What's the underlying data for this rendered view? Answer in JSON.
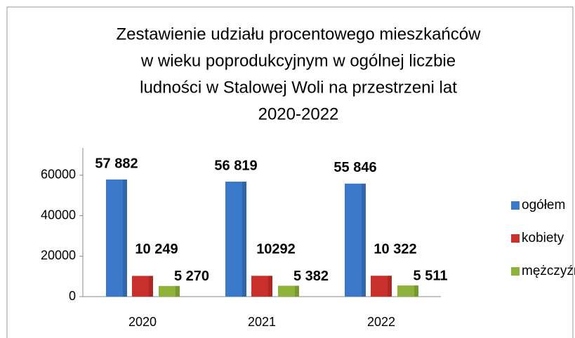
{
  "chart_data": {
    "type": "bar",
    "title": [
      "Zestawienie udziału procentowego mieszkańców",
      "w wieku poprodukcyjnym w ogólnej liczbie",
      "ludności w Stalowej Woli na przestrzeni lat",
      "2020-2022"
    ],
    "categories": [
      "2020",
      "2021",
      "2022"
    ],
    "series": [
      {
        "name": "ogółem",
        "color": "#3a78c9",
        "values": [
          57882,
          56819,
          55846
        ],
        "value_labels": [
          "57 882",
          "56 819",
          "55 846"
        ]
      },
      {
        "name": "kobiety",
        "color": "#c9302c",
        "values": [
          10249,
          10292,
          10322
        ],
        "value_labels": [
          "10 249",
          "10292",
          "10 322"
        ]
      },
      {
        "name": "mężczyźni",
        "color": "#8db33a",
        "values": [
          5270,
          5382,
          5511
        ],
        "value_labels": [
          "5 270",
          "5 382",
          "5 511"
        ]
      }
    ],
    "ylim": [
      0,
      70000
    ],
    "yticks": [
      0,
      20000,
      40000,
      60000
    ],
    "legend": "right"
  }
}
